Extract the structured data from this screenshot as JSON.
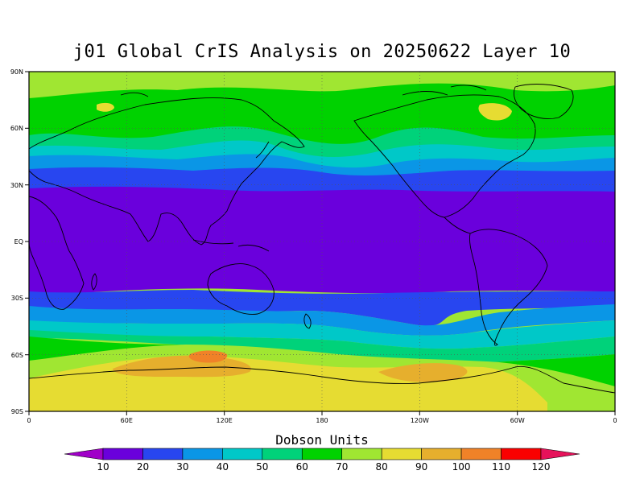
{
  "title": "j01 Global CrIS Analysis on 20250622 Layer 10",
  "lat_labels": [
    "90N",
    "60N",
    "30N",
    "EQ",
    "30S",
    "60S",
    "90S"
  ],
  "lon_labels": [
    "0",
    "60E",
    "120E",
    "180",
    "120W",
    "60W",
    "0"
  ],
  "colorbar": {
    "label": "Dobson Units",
    "ticks": [
      "10",
      "20",
      "30",
      "40",
      "50",
      "60",
      "70",
      "80",
      "90",
      "100",
      "110",
      "120"
    ],
    "colors": [
      "#a000c8",
      "#6a00dc",
      "#2846f0",
      "#0a96e6",
      "#00c8c8",
      "#00d27a",
      "#00d200",
      "#a0e632",
      "#e6dc32",
      "#e6af2d",
      "#f08228",
      "#fa0000",
      "#e6125a"
    ]
  },
  "map_colors": {
    "band_60_70": "#00d200",
    "band_70_80": "#a0e632",
    "band_50_60": "#00d27a",
    "band_40_50": "#00c8c8",
    "band_30_40": "#0a96e6",
    "band_20_30": "#2846f0",
    "band_10_20": "#6a00dc",
    "band_80_90": "#e6dc32",
    "band_90_100": "#e6af2d",
    "band_100_110": "#f08228"
  }
}
